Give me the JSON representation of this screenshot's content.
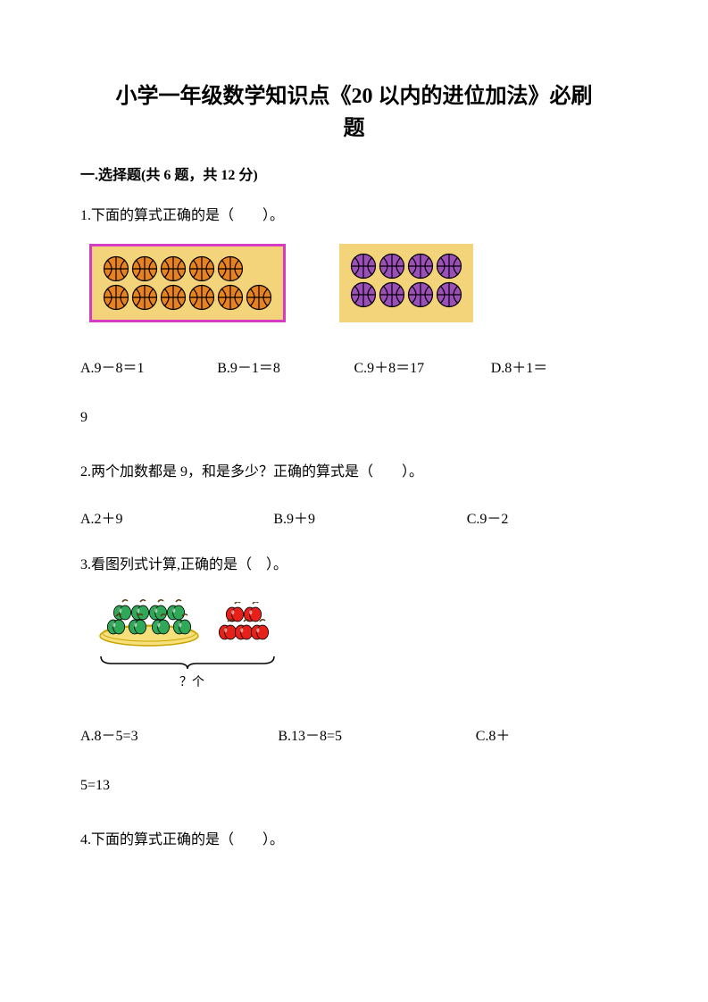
{
  "title_line1": "小学一年级数学知识点《20 以内的进位加法》必刷",
  "title_line2": "题",
  "section": "一.选择题(共 6 题，共 12 分)",
  "q1": {
    "text": "1.下面的算式正确的是（　　）。",
    "panel1": {
      "bg": "#f4d47a",
      "border": "#d63cc3",
      "ball_color": "#e8821e",
      "line_color": "#000000",
      "rows": [
        5,
        6
      ]
    },
    "panel2": {
      "bg": "#f4d47a",
      "ball_color": "#9b4fb8",
      "line_color": "#000000",
      "rows": [
        4,
        4
      ]
    },
    "opts": {
      "A": "A.9－8＝1",
      "B": "B.9－1＝8",
      "C": "C.9＋8＝17",
      "D": "D.8＋1＝"
    },
    "tail": "9"
  },
  "q2": {
    "text": "2.两个加数都是 9，和是多少？正确的算式是（　　）。",
    "opts": {
      "A": "A.2＋9",
      "B": "B.9＋9",
      "C": "C.9－2"
    }
  },
  "q3": {
    "text": "3.看图列式计算,正确的是（　）。",
    "plate_apples": 8,
    "plate_apple_color": "#2fa857",
    "red_apples": 5,
    "red_apple_color": "#e8201a",
    "q_label": "？个",
    "opts": {
      "A": "A.8－5=3",
      "B": "B.13－8=5",
      "C": "C.8＋"
    },
    "tail": "5=13"
  },
  "q4": {
    "text": "4.下面的算式正确的是（　　）。"
  }
}
